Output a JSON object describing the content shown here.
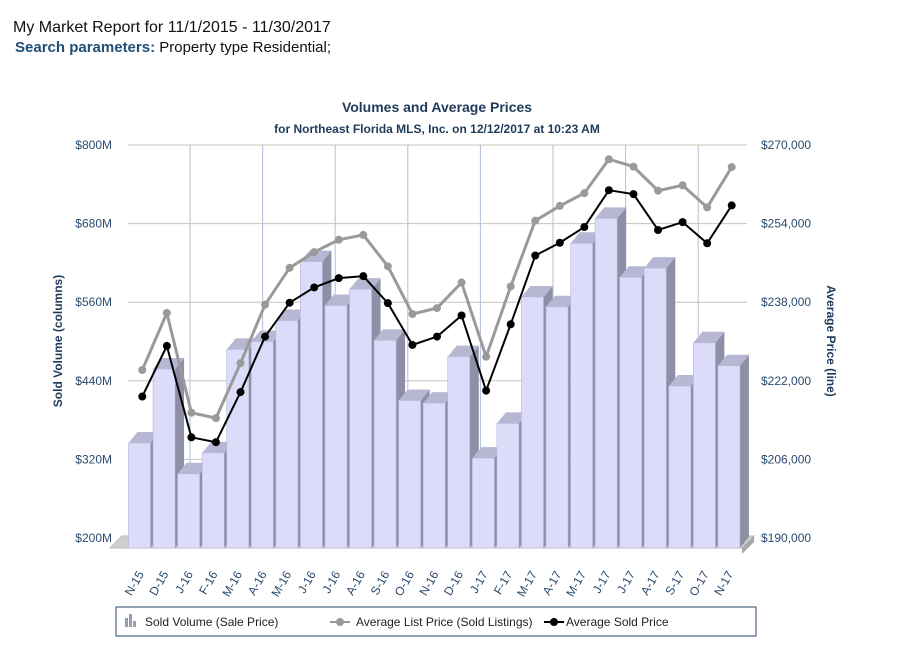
{
  "header": {
    "report_title": "My Market Report for 11/1/2015 - 11/30/2017",
    "params_label": "Search parameters:",
    "params_value": "Property type Residential;"
  },
  "colors": {
    "bar_front": "#dcdcfa",
    "bar_side": "#8e8ea6",
    "bar_top": "#b7b7d4",
    "list_price_line": "#9a9a9a",
    "sold_price_line": "#000000",
    "title": "#1f3a5a"
  },
  "chart_data": {
    "type": "bar",
    "title": "Volumes and Average Prices",
    "subtitle": "for Northeast Florida MLS, Inc. on 12/12/2017 at 10:23 AM",
    "ylabel": "Sold Volume (columns)",
    "y2label": "Average Price (line)",
    "categories": [
      "N-15",
      "D-15",
      "J-16",
      "F-16",
      "M-16",
      "A-16",
      "M-16",
      "J-16",
      "J-16",
      "A-16",
      "S-16",
      "O-16",
      "N-16",
      "D-16",
      "J-17",
      "F-17",
      "M-17",
      "A-17",
      "M-17",
      "J-17",
      "J-17",
      "A-17",
      "S-17",
      "O-17",
      "N-17"
    ],
    "ylim": [
      200,
      800
    ],
    "y_ticks": [
      "$200M",
      "$320M",
      "$440M",
      "$560M",
      "$680M",
      "$800M"
    ],
    "y2lim": [
      190000,
      270000
    ],
    "y2_ticks": [
      "$190,000",
      "$206,000",
      "$222,000",
      "$238,000",
      "$254,000",
      "$270,000"
    ],
    "grid": true,
    "legend_position": "bottom",
    "series": [
      {
        "name": "Sold Volume (Sale Price)",
        "kind": "bar",
        "axis": "left",
        "values": [
          345,
          458,
          298,
          330,
          488,
          500,
          532,
          622,
          555,
          580,
          502,
          410,
          406,
          477,
          322,
          375,
          568,
          553,
          650,
          688,
          598,
          612,
          432,
          498,
          463
        ]
      },
      {
        "name": "Average List Price (Sold Listings)",
        "kind": "line",
        "axis": "right",
        "values": [
          224200,
          235800,
          215500,
          214400,
          225600,
          237500,
          245000,
          248200,
          250700,
          251700,
          245300,
          235600,
          236800,
          242000,
          226900,
          241200,
          254600,
          257600,
          260200,
          267100,
          265600,
          260700,
          261800,
          257300,
          265500
        ]
      },
      {
        "name": "Average Sold Price",
        "kind": "line",
        "axis": "right",
        "values": [
          218800,
          229100,
          210500,
          209500,
          219700,
          231000,
          237900,
          241000,
          242900,
          243300,
          237800,
          229300,
          231000,
          235300,
          220000,
          233500,
          247500,
          250100,
          253300,
          260800,
          260000,
          252700,
          254300,
          250000,
          257700
        ]
      }
    ]
  }
}
